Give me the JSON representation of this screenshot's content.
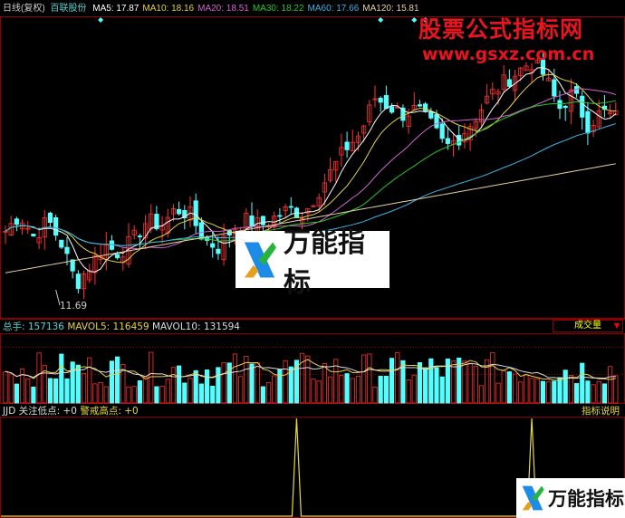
{
  "header": {
    "period": "日线(复权)",
    "stock_name": "百联股份",
    "ma": [
      {
        "label": "MA5: 17.87",
        "color": "#ffffff"
      },
      {
        "label": "MA10: 18.16",
        "color": "#e6d23c"
      },
      {
        "label": "MA20: 18.51",
        "color": "#d264d2"
      },
      {
        "label": "MA30: 18.22",
        "color": "#28c828"
      },
      {
        "label": "MA60: 17.66",
        "color": "#3cb4e6"
      },
      {
        "label": "MA120: 15.81",
        "color": "#e6d2a0"
      }
    ]
  },
  "main": {
    "low_label": "11.69",
    "close_keypoints": [
      13.8,
      14.4,
      13.6,
      14.2,
      13.3,
      11.9,
      12.6,
      13.3,
      13.0,
      13.5,
      14.2,
      14.0,
      14.6,
      14.4,
      13.5,
      13.2,
      13.9,
      14.2,
      14.0,
      14.3,
      14.6,
      14.4,
      15.2,
      16.0,
      16.8,
      17.3,
      18.6,
      18.3,
      18.0,
      18.2,
      17.6,
      16.8,
      17.2,
      17.8,
      18.6,
      19.1,
      19.5,
      19.9,
      19.4,
      18.2,
      18.8,
      17.6,
      18.1,
      17.9
    ],
    "up_color": "#ff3232",
    "down_color": "#54ffff"
  },
  "volume": {
    "label_total": "总手: 157136",
    "label_mavol5": "MAVOL5: 116459",
    "label_mavol10": "MAVOL10: 131594",
    "selector": "成交量"
  },
  "jjd": {
    "name": "JJD",
    "low_label": "关注低点: +0",
    "high_label": "警戒高点: +0",
    "help": "指标说明",
    "spike_bars": [
      52,
      94
    ],
    "line_color": "#e6dc32"
  },
  "watermark": {
    "title": "股票公式指标网",
    "url": "www.gsxz.com.cn"
  },
  "logo": {
    "text": "万能指标"
  }
}
